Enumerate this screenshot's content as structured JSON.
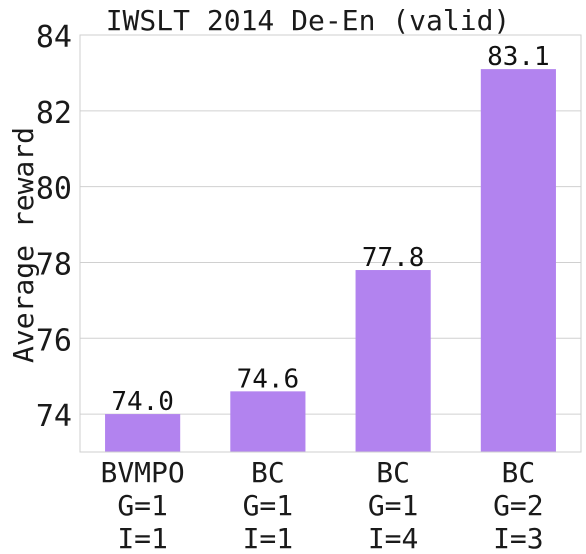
{
  "chart_data": {
    "type": "bar",
    "title": "IWSLT 2014 De-En (valid)",
    "xlabel": "",
    "ylabel": "Average reward",
    "categories": [
      [
        "BVMPO",
        "G=1",
        "I=1"
      ],
      [
        "BC",
        "G=1",
        "I=1"
      ],
      [
        "BC",
        "G=1",
        "I=4"
      ],
      [
        "BC",
        "G=2",
        "I=3"
      ]
    ],
    "values": [
      74.0,
      74.6,
      77.8,
      83.1
    ],
    "value_labels": [
      "74.0",
      "74.6",
      "77.8",
      "83.1"
    ],
    "ylim": [
      73,
      84
    ],
    "yticks": [
      74,
      76,
      78,
      80,
      82,
      84
    ],
    "grid": true,
    "bar_color": "#b283ef",
    "grid_color": "#d0d0d0"
  }
}
